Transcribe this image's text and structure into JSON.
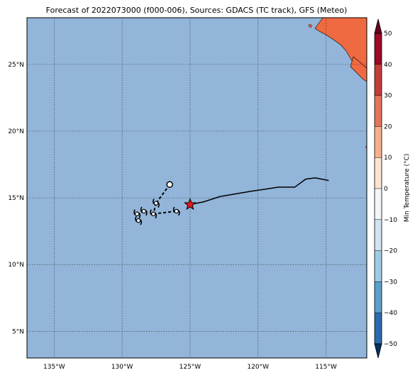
{
  "title": "Forecast of 2022073000 (f000-006), Sources: GDACS (TC track), GFS (Meteo)",
  "colorbar": {
    "label": "Min Temperature (°C)",
    "ticks": [
      "50",
      "40",
      "30",
      "20",
      "10",
      "0",
      "−10",
      "−20",
      "−30",
      "−40",
      "−50"
    ],
    "colors": [
      "#67001f",
      "#b2182b",
      "#d6604d",
      "#f4a582",
      "#fddbc7",
      "#f7f7f7",
      "#d1e5f0",
      "#92c5de",
      "#4393c3",
      "#2166ac",
      "#053061"
    ]
  },
  "axes": {
    "lon_ticks": [
      "135°W",
      "130°W",
      "125°W",
      "120°W",
      "115°W"
    ],
    "lat_ticks": [
      "25°N",
      "20°N",
      "15°N",
      "10°N",
      "5°N"
    ],
    "lon_range": [
      -137,
      -112
    ],
    "lat_range": [
      3,
      28.5
    ]
  },
  "colors": {
    "ocean": "#92b5d9",
    "land": "#ef6a41",
    "track": "#000000",
    "star": "#e41a1c"
  },
  "track": {
    "current_position": {
      "lon": -125.0,
      "lat": 14.5
    },
    "forecast_path": [
      {
        "lon": -125.0,
        "lat": 14.5
      },
      {
        "lon": -124.0,
        "lat": 14.7
      },
      {
        "lon": -122.8,
        "lat": 15.1
      },
      {
        "lon": -120.5,
        "lat": 15.5
      },
      {
        "lon": -118.5,
        "lat": 15.8
      },
      {
        "lon": -117.3,
        "lat": 15.8
      },
      {
        "lon": -116.5,
        "lat": 16.4
      },
      {
        "lon": -115.8,
        "lat": 16.5
      },
      {
        "lon": -114.8,
        "lat": 16.3
      }
    ],
    "past_positions": [
      {
        "lon": -126.5,
        "lat": 16.0
      },
      {
        "lon": -127.5,
        "lat": 14.6
      },
      {
        "lon": -127.7,
        "lat": 13.8
      },
      {
        "lon": -128.4,
        "lat": 14.0
      },
      {
        "lon": -128.9,
        "lat": 13.8
      },
      {
        "lon": -128.8,
        "lat": 13.3
      },
      {
        "lon": -126.0,
        "lat": 14.0
      }
    ]
  }
}
